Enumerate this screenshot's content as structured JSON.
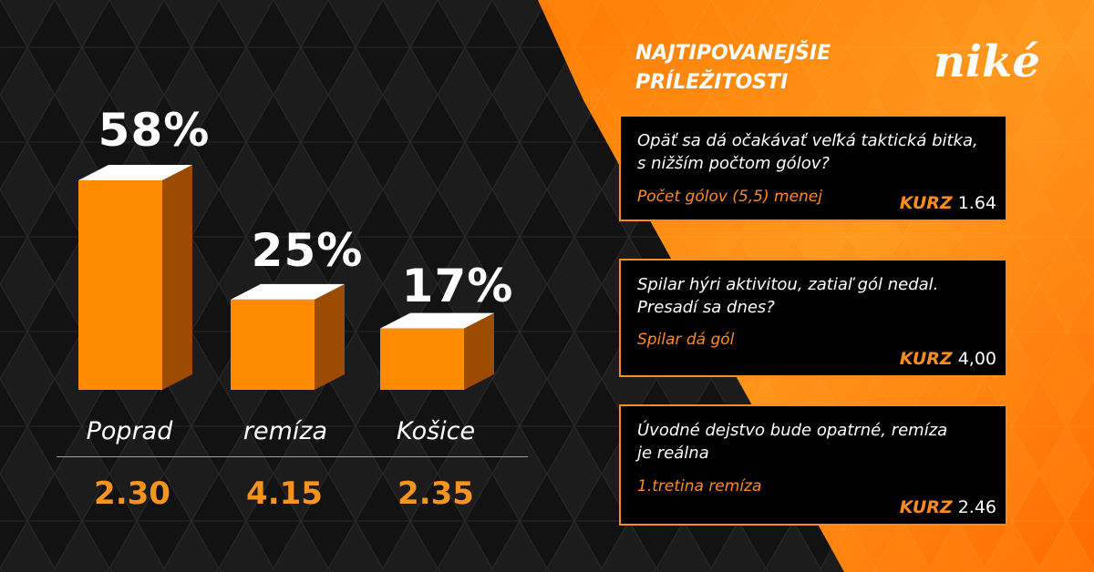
{
  "colors": {
    "accent": "#ff8c1a",
    "bar_front": "#ff8c00",
    "bar_side": "#9c4b00",
    "bar_top": "#ffffff",
    "background": "#121212",
    "odds_text": "#f7941d"
  },
  "chart_data": {
    "type": "bar",
    "categories": [
      "Poprad",
      "remíza",
      "Košice"
    ],
    "values": [
      58,
      25,
      17
    ],
    "value_labels": [
      "58%",
      "25%",
      "17%"
    ],
    "odds": [
      "2.30",
      "4.15",
      "2.35"
    ],
    "ylim": [
      0,
      60
    ],
    "style": "3d-bars",
    "grid": false
  },
  "panel": {
    "title_line1": "NAJTIPOVANEJŠIE",
    "title_line2": "PRÍLEŽITOSTI",
    "logo": "niké",
    "kurz_label": "KURZ",
    "cards": [
      {
        "question_line1": "Opäť sa dá očakávať veľká taktická bitka,",
        "question_line2": "s nižším počtom gólov?",
        "tip": "Počet gólov (5,5) menej",
        "odds": "1.64"
      },
      {
        "question_line1": "Spilar hýri aktivitou, zatiaľ gól nedal.",
        "question_line2": "Presadí sa dnes?",
        "tip": "Spilar dá gól",
        "odds": "4,00"
      },
      {
        "question_line1": "Úvodné dejstvo bude opatrné, remíza",
        "question_line2": "je reálna",
        "tip": "1.tretina remíza",
        "odds": "2.46"
      }
    ]
  }
}
